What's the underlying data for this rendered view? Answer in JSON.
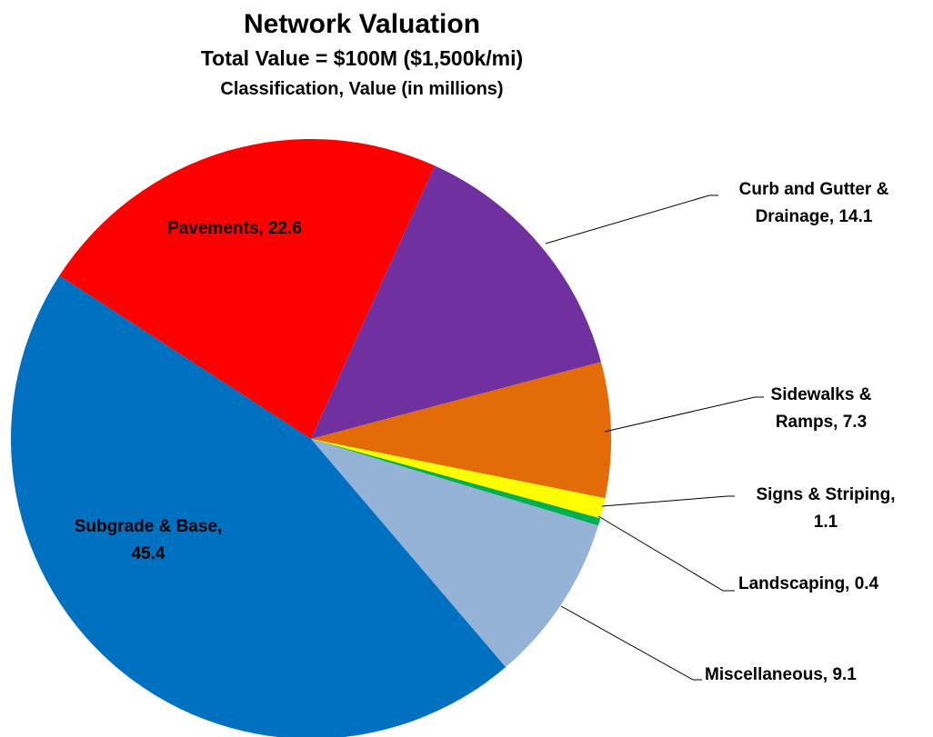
{
  "chart_data": {
    "type": "pie",
    "title": "Network Valuation",
    "subtitle": "Total Value = $100M ($1,500k/mi)",
    "caption": "Classification, Value (in millions)",
    "values": [
      22.6,
      14.1,
      7.3,
      1.1,
      0.4,
      9.1,
      45.4
    ],
    "value_labels": [
      [
        "Pavements, 22.6"
      ],
      [
        "Curb and Gutter &",
        "Drainage, 14.1"
      ],
      [
        "Sidewalks &",
        "Ramps, 7.3"
      ],
      [
        "Signs & Striping,",
        "1.1"
      ],
      [
        "Landscaping, 0.4"
      ],
      [
        "Miscellaneous, 9.1"
      ],
      [
        "Subgrade & Base,",
        "45.4"
      ]
    ],
    "colors": [
      "#ff0000",
      "#7030a0",
      "#e36c09",
      "#ffff00",
      "#00b050",
      "#95b3d7",
      "#0070c0"
    ]
  }
}
